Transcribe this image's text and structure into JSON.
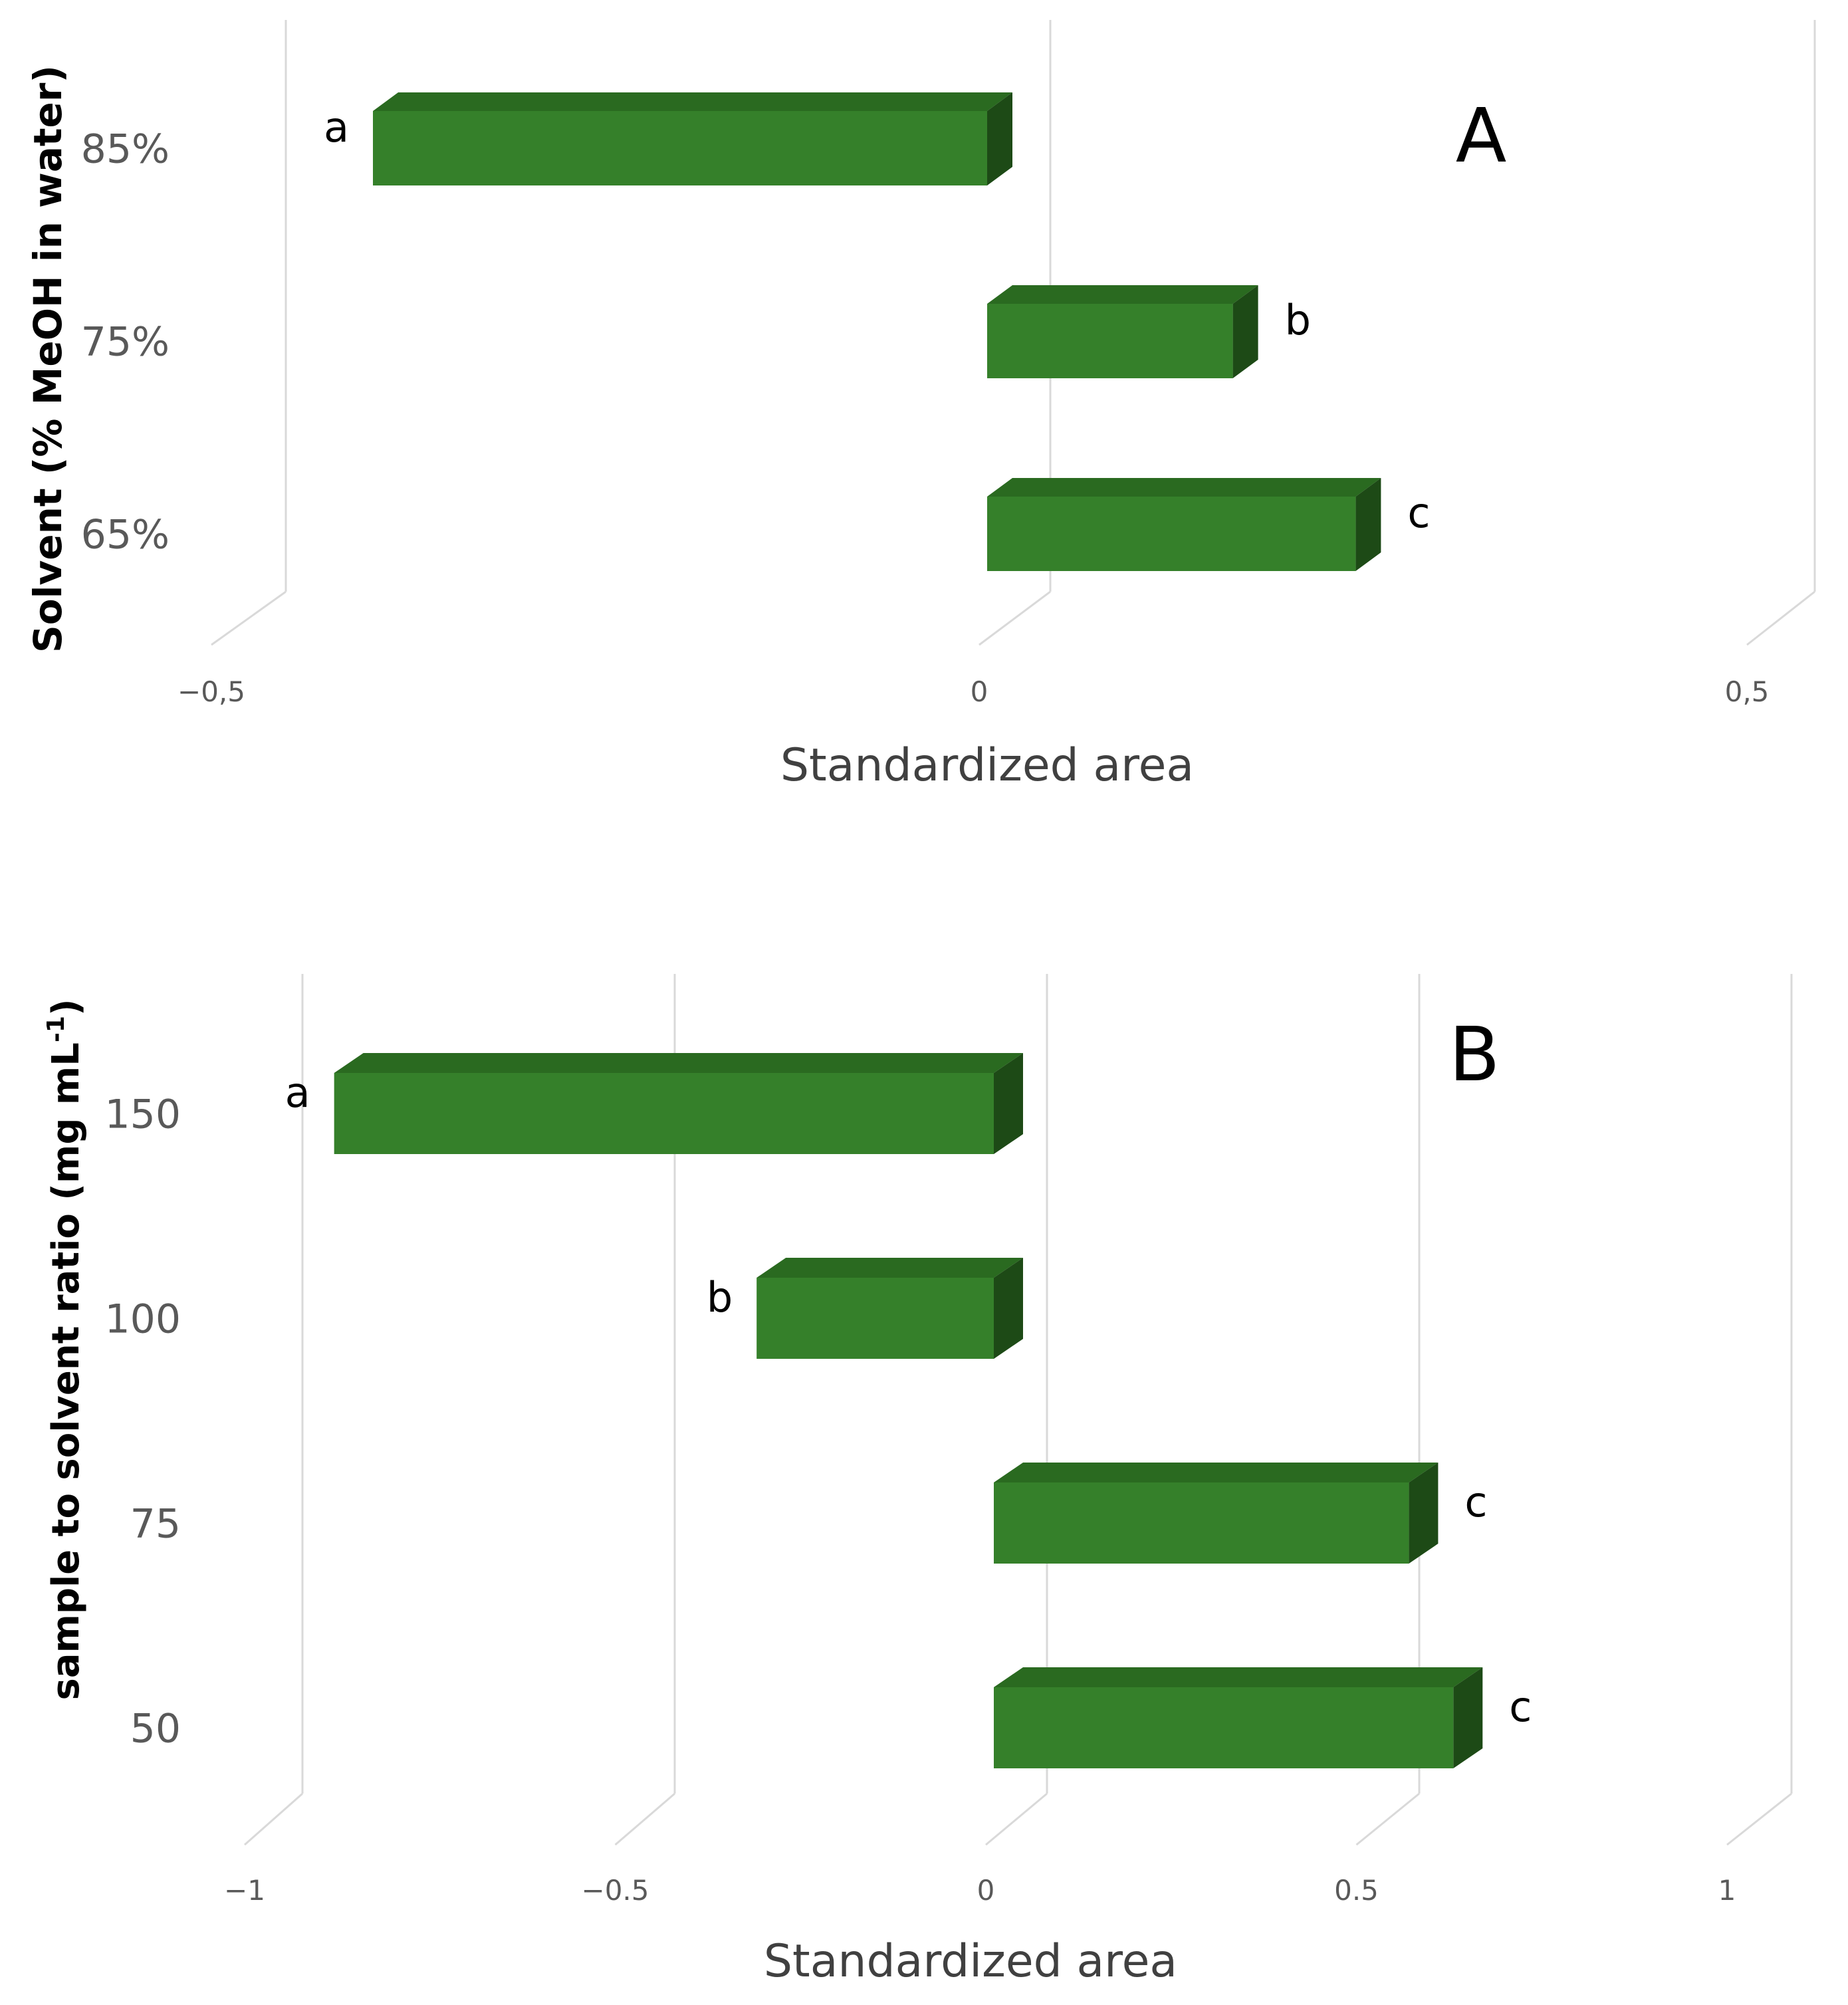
{
  "chart_data": [
    {
      "panel_label": "A",
      "type": "bar",
      "orientation": "horizontal",
      "categories": [
        "85%",
        "75%",
        "65%"
      ],
      "values": [
        -0.4,
        0.16,
        0.24
      ],
      "bar_labels": [
        "a",
        "b",
        "c"
      ],
      "xlabel": "Standardized area",
      "ylabel": "Solvent (% MeOH in water)",
      "xlim": [
        -0.5,
        0.5
      ],
      "xticks": [
        -0.5,
        0,
        0.5
      ],
      "xtick_labels": [
        "−0,5",
        "0",
        "0,5"
      ],
      "grid": true
    },
    {
      "panel_label": "B",
      "type": "bar",
      "orientation": "horizontal",
      "categories": [
        "150",
        "100",
        "75",
        "50"
      ],
      "values": [
        -0.89,
        -0.32,
        0.56,
        0.62
      ],
      "bar_labels": [
        "a",
        "b",
        "c",
        "c"
      ],
      "xlabel": "Standardized area",
      "ylabel": "sample to solvent ratio (mg mL",
      "ylabel_superscript": "-1",
      "ylabel_suffix": ")",
      "xlim": [
        -1,
        1
      ],
      "xticks": [
        -1,
        -0.5,
        0,
        0.5,
        1
      ],
      "xtick_labels": [
        "−1",
        "−0.5",
        "0",
        "0.5",
        "1"
      ],
      "grid": true
    }
  ],
  "colors": {
    "bar_front": "#35802a",
    "bar_top": "#2a6a20",
    "bar_side": "#1d4a16",
    "gridline": "#d9d9d9",
    "tick_text": "#595959",
    "axis_title": "#404040",
    "label_text": "#000000"
  }
}
